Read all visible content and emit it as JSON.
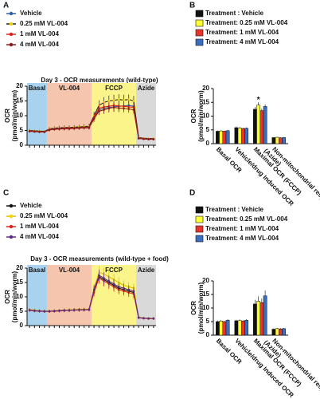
{
  "chart_data": [
    {
      "type": "line",
      "panel": "A",
      "title": "Day 3 - OCR measurements (wild-type)",
      "ylabel": [
        "OCR",
        "(pmol/min/worm)"
      ],
      "x": [
        1,
        2,
        3,
        4,
        5,
        6,
        7,
        8,
        9,
        10,
        11,
        12,
        13,
        14,
        15,
        16,
        17,
        18,
        19,
        20,
        21,
        22,
        23,
        24,
        25,
        26
      ],
      "xlim": [
        0.5,
        26.5
      ],
      "ylim": [
        0,
        20
      ],
      "yticks": [
        0,
        5,
        10,
        15,
        20
      ],
      "regions": [
        {
          "label": "Basal",
          "start": 0.5,
          "end": 4.5,
          "color": "#a9d2ef"
        },
        {
          "label": "VL-004",
          "start": 4.5,
          "end": 13.5,
          "color": "#f5c6ad"
        },
        {
          "label": "FCCP",
          "start": 13.5,
          "end": 22.5,
          "color": "#fbf48b"
        },
        {
          "label": "Azide",
          "start": 22.5,
          "end": 26.5,
          "color": "#d9d9d9"
        }
      ],
      "series": [
        {
          "name": "Vehicle",
          "color": "#2e5fa8",
          "marker_color": "#2e5fa8",
          "values": [
            5,
            4.8,
            4.7,
            4.6,
            5.2,
            5.5,
            5.6,
            5.7,
            5.8,
            5.9,
            6,
            6.1,
            6.2,
            9,
            12,
            12.5,
            12.8,
            13,
            13.2,
            13.3,
            13.5,
            13.2,
            2.5,
            2.3,
            2.2,
            2.2
          ],
          "errors": [
            0.5,
            0.5,
            0.4,
            0.4,
            0.6,
            0.6,
            0.6,
            0.6,
            0.7,
            0.7,
            0.7,
            0.7,
            0.7,
            1.2,
            1.5,
            1.6,
            1.5,
            1.6,
            1.7,
            1.6,
            1.5,
            1.5,
            0.3,
            0.3,
            0.3,
            0.3
          ]
        },
        {
          "name": "0.25 mM VL-004",
          "color": "#222222",
          "marker_color": "#f2d600",
          "values": [
            5,
            4.9,
            4.8,
            4.7,
            5.5,
            5.8,
            5.9,
            6,
            6,
            6.1,
            6.2,
            6.3,
            6.4,
            10,
            13.5,
            14.5,
            15,
            15.2,
            15.5,
            15.3,
            15.5,
            15,
            2.6,
            2.4,
            2.3,
            2.3
          ],
          "errors": [
            0.5,
            0.4,
            0.4,
            0.4,
            0.6,
            0.6,
            0.7,
            0.7,
            0.7,
            0.7,
            0.7,
            0.8,
            0.8,
            1.3,
            1.7,
            1.8,
            1.8,
            1.9,
            1.8,
            1.8,
            1.7,
            1.7,
            0.3,
            0.3,
            0.3,
            0.3
          ]
        },
        {
          "name": "1 mM VL-004",
          "color": "#d7261e",
          "marker_color": "#d7261e",
          "values": [
            4.8,
            4.7,
            4.6,
            4.5,
            5.3,
            5.5,
            5.6,
            5.7,
            5.8,
            5.8,
            5.9,
            6,
            6,
            9.5,
            12.5,
            13,
            13.2,
            13.5,
            13.3,
            13.2,
            13,
            12.8,
            2.4,
            2.2,
            2.1,
            2.1
          ],
          "errors": [
            0.4,
            0.4,
            0.4,
            0.4,
            0.5,
            0.5,
            0.6,
            0.6,
            0.6,
            0.6,
            0.6,
            0.6,
            0.6,
            1.2,
            1.4,
            1.5,
            1.5,
            1.5,
            1.5,
            1.4,
            1.4,
            1.4,
            0.3,
            0.3,
            0.3,
            0.3
          ]
        },
        {
          "name": "4 mM VL-004",
          "color": "#8b1a1a",
          "marker_color": "#8b1a1a",
          "values": [
            4.7,
            4.6,
            4.5,
            4.5,
            5.2,
            5.4,
            5.5,
            5.6,
            5.6,
            5.7,
            5.8,
            5.9,
            5.9,
            9,
            11.5,
            12,
            12.5,
            12.8,
            12.6,
            12.5,
            12.3,
            12,
            2.3,
            2.1,
            2,
            2
          ],
          "errors": [
            0.4,
            0.4,
            0.4,
            0.4,
            0.5,
            0.5,
            0.5,
            0.6,
            0.6,
            0.6,
            0.6,
            0.6,
            0.6,
            1.1,
            1.3,
            1.4,
            1.4,
            1.5,
            1.4,
            1.4,
            1.3,
            1.3,
            0.3,
            0.3,
            0.3,
            0.3
          ]
        }
      ]
    },
    {
      "type": "bar",
      "panel": "B",
      "ylabel": [
        "OCR",
        "(pmol/min/worm)"
      ],
      "categories": [
        "Basal OCR",
        "Vehicle/drug Induced OCR",
        "Maximal OCR (FCCP)",
        "Non-mitochondrial respiration (Azide)"
      ],
      "ylim": [
        0,
        20
      ],
      "yticks": [
        0,
        5,
        10,
        15,
        20
      ],
      "series": [
        {
          "name": "Treatment : Vehicle",
          "color": "#111111",
          "values": [
            4.5,
            5.8,
            12.5,
            2.2
          ],
          "errors": [
            0.3,
            0.4,
            0.8,
            0.2
          ]
        },
        {
          "name": "Treatment: 0.25 mM VL-004",
          "color": "#ffff33",
          "values": [
            4.6,
            5.7,
            14,
            2.3
          ],
          "errors": [
            0.3,
            0.4,
            1,
            0.2
          ]
        },
        {
          "name": "Treatment: 1 mM VL-004",
          "color": "#e8352b",
          "values": [
            4.5,
            5.5,
            12,
            2.1
          ],
          "errors": [
            0.3,
            0.3,
            0.7,
            0.2
          ]
        },
        {
          "name": "Treatment: 4 mM VL-004",
          "color": "#3a6fbf",
          "values": [
            4.7,
            5.6,
            13.5,
            2.2
          ],
          "errors": [
            0.3,
            0.3,
            0.8,
            0.2
          ]
        }
      ],
      "annotations": [
        {
          "text": "*",
          "category": 2,
          "series": 1
        }
      ]
    },
    {
      "type": "line",
      "panel": "C",
      "title": "Day 3 - OCR measurements (wild-type + food)",
      "ylabel": [
        "OCR",
        "(pmol/min/worm)"
      ],
      "x": [
        1,
        2,
        3,
        4,
        5,
        6,
        7,
        8,
        9,
        10,
        11,
        12,
        13,
        14,
        15,
        16,
        17,
        18,
        19,
        20,
        21,
        22,
        23,
        24,
        25,
        26
      ],
      "xlim": [
        0.5,
        26.5
      ],
      "ylim": [
        0,
        20
      ],
      "yticks": [
        0,
        5,
        10,
        15,
        20
      ],
      "regions": [
        {
          "label": "Basal",
          "start": 0.5,
          "end": 4.5,
          "color": "#a9d2ef"
        },
        {
          "label": "VL-004",
          "start": 4.5,
          "end": 13.5,
          "color": "#f5c6ad"
        },
        {
          "label": "FCCP",
          "start": 13.5,
          "end": 22.5,
          "color": "#fbf48b"
        },
        {
          "label": "Azide",
          "start": 22.5,
          "end": 26.5,
          "color": "#d9d9d9"
        }
      ],
      "series": [
        {
          "name": "Vehicle",
          "color": "#111111",
          "marker_color": "#111111",
          "values": [
            5.5,
            5.3,
            5.1,
            5,
            5,
            5.1,
            5.2,
            5.3,
            5.4,
            5.5,
            5.5,
            5.6,
            5.6,
            12,
            17,
            16,
            15,
            14,
            13,
            12.5,
            12,
            11.5,
            2.8,
            2.6,
            2.5,
            2.5
          ],
          "errors": [
            0.6,
            0.5,
            0.5,
            0.5,
            0.5,
            0.5,
            0.5,
            0.6,
            0.6,
            0.6,
            0.6,
            0.6,
            0.6,
            1.5,
            2,
            2,
            1.8,
            1.8,
            1.7,
            1.6,
            1.5,
            1.5,
            0.4,
            0.4,
            0.4,
            0.4
          ]
        },
        {
          "name": "0.25 mM VL-004",
          "color": "#d9bf00",
          "marker_color": "#f2d600",
          "values": [
            5.6,
            5.4,
            5.2,
            5.1,
            5.1,
            5.2,
            5.3,
            5.4,
            5.5,
            5.6,
            5.7,
            5.7,
            5.8,
            13,
            18.5,
            18,
            17,
            16,
            15,
            14,
            13.5,
            13,
            2.9,
            2.7,
            2.6,
            2.6
          ],
          "errors": [
            0.6,
            0.5,
            0.5,
            0.5,
            0.5,
            0.5,
            0.6,
            0.6,
            0.6,
            0.6,
            0.6,
            0.6,
            0.6,
            1.6,
            2.2,
            2.1,
            2,
            1.9,
            1.8,
            1.7,
            1.6,
            1.6,
            0.4,
            0.4,
            0.4,
            0.4
          ]
        },
        {
          "name": "1 mM VL-004",
          "color": "#d7261e",
          "marker_color": "#d7261e",
          "values": [
            5.3,
            5.1,
            5,
            4.9,
            4.9,
            5,
            5.1,
            5.2,
            5.3,
            5.4,
            5.4,
            5.5,
            5.5,
            11.5,
            16.5,
            15.5,
            14.5,
            13.5,
            12.5,
            12,
            11.5,
            11,
            2.7,
            2.5,
            2.4,
            2.4
          ],
          "errors": [
            0.5,
            0.5,
            0.5,
            0.5,
            0.5,
            0.5,
            0.5,
            0.5,
            0.6,
            0.6,
            0.6,
            0.6,
            0.6,
            1.4,
            1.9,
            1.9,
            1.8,
            1.7,
            1.6,
            1.5,
            1.5,
            1.4,
            0.4,
            0.4,
            0.4,
            0.4
          ]
        },
        {
          "name": "4 mM VL-004",
          "color": "#5b2a86",
          "marker_color": "#5b2a86",
          "values": [
            5.4,
            5.2,
            5.1,
            5,
            5,
            5.1,
            5.2,
            5.3,
            5.3,
            5.4,
            5.5,
            5.5,
            5.6,
            12.5,
            17.5,
            16.5,
            15.5,
            14.5,
            13.5,
            13,
            12.5,
            12,
            2.8,
            2.6,
            2.5,
            2.5
          ],
          "errors": [
            0.5,
            0.5,
            0.5,
            0.5,
            0.5,
            0.5,
            0.5,
            0.6,
            0.6,
            0.6,
            0.6,
            0.6,
            0.6,
            1.5,
            2,
            2,
            1.9,
            1.8,
            1.7,
            1.6,
            1.5,
            1.5,
            0.4,
            0.4,
            0.4,
            0.4
          ]
        }
      ]
    },
    {
      "type": "bar",
      "panel": "D",
      "ylabel": [
        "OCR",
        "(pmol/min/worm)"
      ],
      "categories": [
        "Basal OCR",
        "Vehicle/drug Induced OCR",
        "Maximal OCR (FCCP)",
        "Non-mitochondrial respiration (Azide)"
      ],
      "ylim": [
        0,
        20
      ],
      "yticks": [
        0,
        5,
        10,
        15,
        20
      ],
      "series": [
        {
          "name": "Treatment : Vehicle",
          "color": "#111111",
          "values": [
            5,
            5.3,
            11.5,
            2.2
          ],
          "errors": [
            0.4,
            0.4,
            1.5,
            0.3
          ]
        },
        {
          "name": "Treatment: 0.25 mM VL-004",
          "color": "#ffff33",
          "values": [
            5.2,
            5.4,
            12.5,
            2.4
          ],
          "errors": [
            0.4,
            0.4,
            1.8,
            0.3
          ]
        },
        {
          "name": "Treatment: 1 mM VL-004",
          "color": "#e8352b",
          "values": [
            5,
            5.2,
            12,
            2.3
          ],
          "errors": [
            0.3,
            0.3,
            1.5,
            0.3
          ]
        },
        {
          "name": "Treatment: 4 mM VL-004",
          "color": "#3a6fbf",
          "values": [
            5.5,
            5.5,
            14.5,
            2.4
          ],
          "errors": [
            0.4,
            0.4,
            2,
            0.3
          ]
        }
      ]
    }
  ]
}
